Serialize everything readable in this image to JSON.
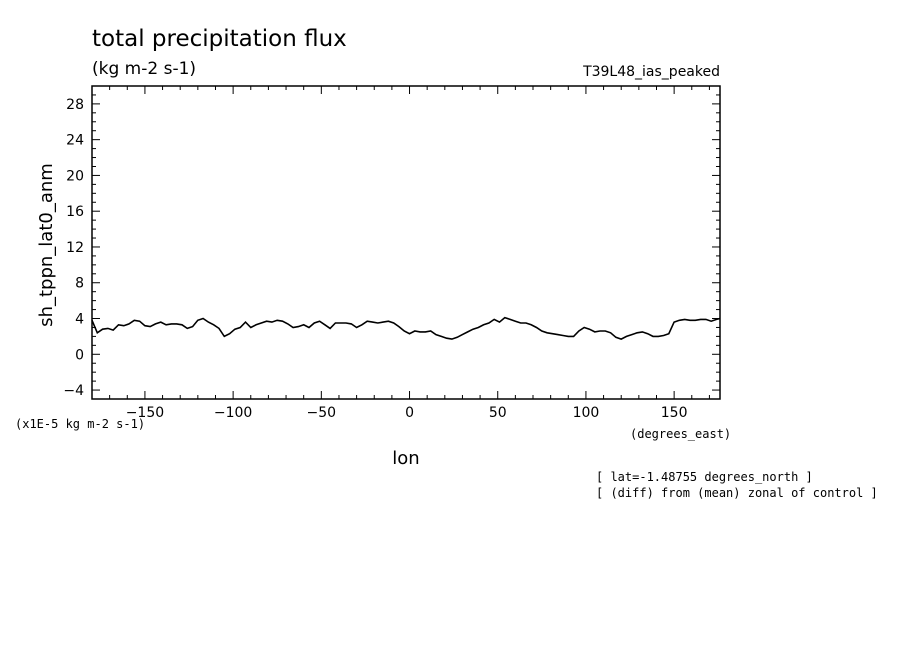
{
  "title": "total precipitation flux",
  "units": "(kg m-2 s-1)",
  "run_label": "T39L48_ias_peaked",
  "scale_note": "(x1E-5 kg m-2 s-1)",
  "x_units": "(degrees_east)",
  "notes": [
    "[ lat=-1.48755 degrees_north ]",
    "[ (diff) from (mean) zonal of control ]"
  ],
  "chart_data": {
    "type": "line",
    "xlabel": "lon",
    "ylabel": "sh_tppn_lat0_anm",
    "xlim": [
      -180,
      176
    ],
    "ylim": [
      -5,
      30
    ],
    "xticks": [
      -150,
      -100,
      -50,
      0,
      50,
      100,
      150
    ],
    "yticks": [
      -4,
      0,
      4,
      8,
      12,
      16,
      20,
      24,
      28
    ],
    "grid": false,
    "series": [
      {
        "x": [
          -180,
          -177,
          -174,
          -171,
          -168,
          -165,
          -162,
          -159,
          -156,
          -153,
          -150,
          -147,
          -144,
          -141,
          -138,
          -135,
          -132,
          -129,
          -126,
          -123,
          -120,
          -117,
          -114,
          -111,
          -108,
          -105,
          -102,
          -99,
          -96,
          -93,
          -90,
          -87,
          -84,
          -81,
          -78,
          -75,
          -72,
          -69,
          -66,
          -63,
          -60,
          -57,
          -54,
          -51,
          -48,
          -45,
          -42,
          -39,
          -36,
          -33,
          -30,
          -27,
          -24,
          -21,
          -18,
          -15,
          -12,
          -9,
          -6,
          -3,
          0,
          3,
          6,
          9,
          12,
          15,
          18,
          21,
          24,
          27,
          30,
          33,
          36,
          39,
          42,
          45,
          48,
          51,
          54,
          57,
          60,
          63,
          66,
          69,
          72,
          75,
          78,
          81,
          84,
          87,
          90,
          93,
          96,
          99,
          102,
          105,
          108,
          111,
          114,
          117,
          120,
          123,
          126,
          129,
          132,
          135,
          138,
          141,
          144,
          147,
          150,
          153,
          156,
          159,
          162,
          165,
          168,
          171,
          174,
          176
        ],
        "y": [
          3.8,
          2.4,
          2.8,
          2.9,
          2.7,
          3.3,
          3.2,
          3.4,
          3.8,
          3.7,
          3.2,
          3.1,
          3.4,
          3.6,
          3.3,
          3.4,
          3.4,
          3.3,
          2.9,
          3.1,
          3.8,
          4.0,
          3.6,
          3.3,
          2.9,
          2.0,
          2.3,
          2.8,
          3.0,
          3.6,
          3.0,
          3.3,
          3.5,
          3.7,
          3.6,
          3.8,
          3.7,
          3.4,
          3.0,
          3.1,
          3.3,
          3.0,
          3.5,
          3.7,
          3.3,
          2.9,
          3.5,
          3.5,
          3.5,
          3.4,
          3.0,
          3.3,
          3.7,
          3.6,
          3.5,
          3.6,
          3.7,
          3.5,
          3.1,
          2.6,
          2.3,
          2.6,
          2.5,
          2.5,
          2.6,
          2.2,
          2.0,
          1.8,
          1.7,
          1.9,
          2.2,
          2.5,
          2.8,
          3.0,
          3.3,
          3.5,
          3.9,
          3.6,
          4.1,
          3.9,
          3.7,
          3.5,
          3.5,
          3.3,
          3.0,
          2.6,
          2.4,
          2.3,
          2.2,
          2.1,
          2.0,
          2.0,
          2.6,
          3.0,
          2.8,
          2.5,
          2.6,
          2.6,
          2.4,
          1.9,
          1.7,
          2.0,
          2.2,
          2.4,
          2.5,
          2.3,
          2.0,
          2.0,
          2.1,
          2.3,
          3.6,
          3.8,
          3.9,
          3.8,
          3.8,
          3.9,
          3.9,
          3.7,
          3.9,
          4.0
        ]
      }
    ]
  }
}
